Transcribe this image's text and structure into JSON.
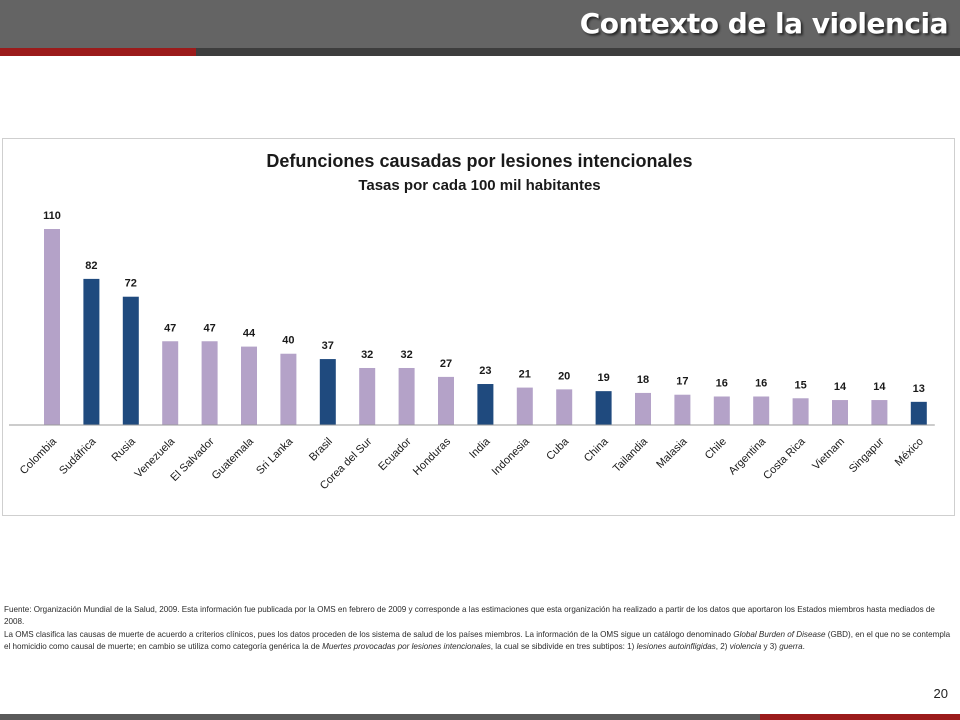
{
  "header": {
    "title": "Contexto de la violencia"
  },
  "colors": {
    "header_bg": "#646464",
    "accent_red": "#9b1b1b",
    "bar_light": "#b4a2c8",
    "bar_dark": "#1f4a7e"
  },
  "chart_data": {
    "type": "bar",
    "title": "Defunciones  causadas por lesiones intencionales",
    "subtitle": "Tasas por cada 100 mil habitantes",
    "categories": [
      "Colombia",
      "Sudáfrica",
      "Rusia",
      "Venezuela",
      "El Salvador",
      "Guatemala",
      "Sri Lanka",
      "Brasil",
      "Corea del Sur",
      "Ecuador",
      "Honduras",
      "India",
      "Indonesia",
      "Cuba",
      "China",
      "Tailandia",
      "Malasia",
      "Chile",
      "Argentina",
      "Costa Rica",
      "Vietnam",
      "Singapur",
      "México"
    ],
    "values": [
      110,
      82,
      72,
      47,
      47,
      44,
      40,
      37,
      32,
      32,
      27,
      23,
      21,
      20,
      19,
      18,
      17,
      16,
      16,
      15,
      14,
      14,
      13
    ],
    "highlighted": [
      "Sudáfrica",
      "Rusia",
      "Brasil",
      "India",
      "China",
      "México"
    ],
    "ylim": [
      0,
      110
    ],
    "grid": false,
    "data_labels": true
  },
  "footnote": {
    "line1": "Fuente: Organización Mundial de la Salud, 2009. Esta información fue publicada por la OMS en febrero de 2009 y corresponde a las estimaciones que esta organización ha realizado a partir de los datos que aportaron los Estados miembros hasta mediados de 2008.",
    "line2_a": "La OMS clasifica las causas de muerte de acuerdo a criterios clínicos, pues los datos proceden de los sistema de salud de los países miembros. La información de la OMS sigue un catálogo denominado ",
    "line2_b": "Global Burden of Disease",
    "line2_c": " (GBD), en el que no se contempla el homicidio como causal de muerte; en cambio se utiliza como categoría genérica la de ",
    "line2_d": "Muertes provocadas por lesiones intencionales",
    "line2_e": ", la cual se sibdivide en tres subtipos: 1) ",
    "line2_f": "lesiones autoinfligidas",
    "line2_g": ", 2) ",
    "line2_h": "violencia",
    "line2_i": " y 3) ",
    "line2_j": "guerra",
    "line2_k": "."
  },
  "page_number": "20"
}
